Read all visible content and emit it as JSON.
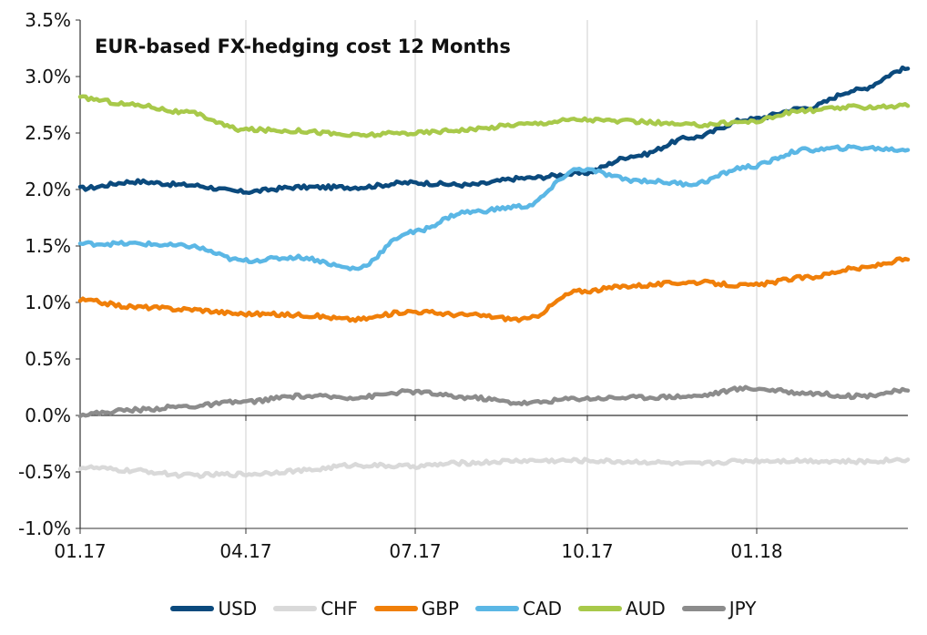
{
  "chart_data": {
    "type": "line",
    "title": "EUR-based FX-hedging cost 12 Months",
    "xlabel": "",
    "ylabel": "",
    "x_tick_labels": [
      "01.17",
      "04.17",
      "07.17",
      "10.17",
      "01.18"
    ],
    "y_tick_labels": [
      "3.5%",
      "3.0%",
      "2.5%",
      "2.0%",
      "1.5%",
      "1.0%",
      "0.5%",
      "0.0%",
      "-0.5%",
      "-1.0%"
    ],
    "ylim": [
      -1.0,
      3.5
    ],
    "y_unit": "%",
    "xlim": [
      "2017-01-02",
      "2018-03-29"
    ],
    "grid": "vertical lines at quarter marks",
    "legend_position": "bottom-center",
    "x_dates": [
      "2017-01-02",
      "2017-02-01",
      "2017-03-01",
      "2017-04-01",
      "2017-05-01",
      "2017-06-01",
      "2017-07-01",
      "2017-08-01",
      "2017-09-01",
      "2017-10-01",
      "2017-11-01",
      "2017-12-01",
      "2018-01-01",
      "2018-02-01",
      "2018-03-01",
      "2018-03-29"
    ],
    "series": [
      {
        "name": "USD",
        "color": "#0b4a7d",
        "values": [
          2.01,
          2.07,
          2.04,
          1.98,
          2.02,
          2.02,
          2.06,
          2.04,
          2.1,
          2.14,
          2.3,
          2.46,
          2.62,
          2.72,
          2.88,
          3.07
        ]
      },
      {
        "name": "CHF",
        "color": "#d9d9d9",
        "values": [
          -0.46,
          -0.49,
          -0.53,
          -0.52,
          -0.49,
          -0.44,
          -0.45,
          -0.42,
          -0.4,
          -0.4,
          -0.41,
          -0.43,
          -0.4,
          -0.4,
          -0.41,
          -0.39
        ]
      },
      {
        "name": "GBP",
        "color": "#f07f09",
        "values": [
          1.02,
          0.96,
          0.94,
          0.9,
          0.89,
          0.85,
          0.92,
          0.89,
          0.85,
          1.1,
          1.15,
          1.18,
          1.15,
          1.22,
          1.3,
          1.38
        ]
      },
      {
        "name": "CAD",
        "color": "#5bb7e5",
        "values": [
          1.52,
          1.52,
          1.5,
          1.37,
          1.4,
          1.3,
          1.62,
          1.8,
          1.85,
          2.18,
          2.08,
          2.05,
          2.2,
          2.35,
          2.37,
          2.35
        ]
      },
      {
        "name": "AUD",
        "color": "#a8c94a",
        "values": [
          2.81,
          2.75,
          2.68,
          2.53,
          2.52,
          2.48,
          2.5,
          2.53,
          2.58,
          2.62,
          2.6,
          2.57,
          2.6,
          2.7,
          2.73,
          2.74
        ]
      },
      {
        "name": "JPY",
        "color": "#8c8c8c",
        "values": [
          0.01,
          0.05,
          0.08,
          0.12,
          0.17,
          0.16,
          0.21,
          0.16,
          0.11,
          0.15,
          0.16,
          0.17,
          0.24,
          0.2,
          0.17,
          0.22
        ]
      }
    ]
  }
}
